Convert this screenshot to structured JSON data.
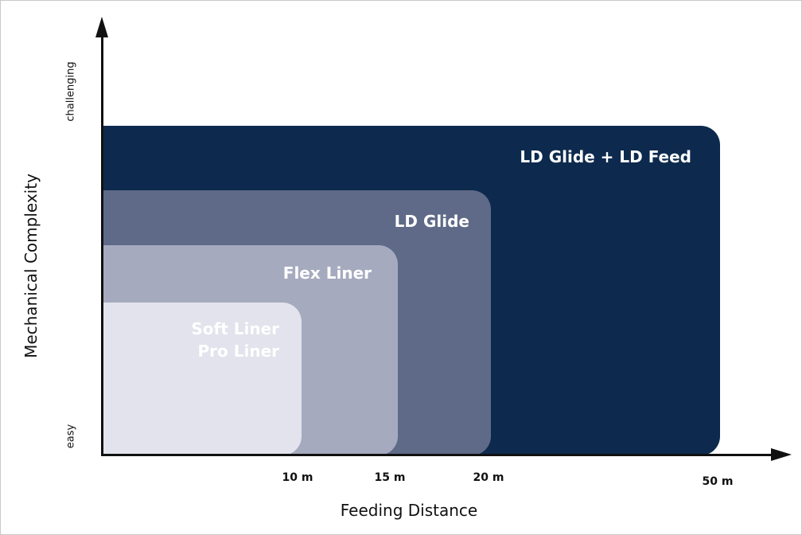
{
  "diagram": {
    "x_axis_title": "Feeding Distance",
    "y_axis_title": "Mechanical Complexity",
    "y_axis_low": "easy",
    "y_axis_high": "challenging",
    "x_ticks": [
      "10 m",
      "15 m",
      "20 m",
      "50 m"
    ],
    "regions": [
      {
        "label": "LD Glide + LD Feed",
        "color": "#0d2a4e"
      },
      {
        "label": "LD Glide",
        "color": "#5e6a87"
      },
      {
        "label": "Flex Liner",
        "color": "#a5aabf"
      },
      {
        "label_line1": "Soft Liner",
        "label_line2": "Pro Liner",
        "color": "#e2e3ec"
      }
    ]
  }
}
